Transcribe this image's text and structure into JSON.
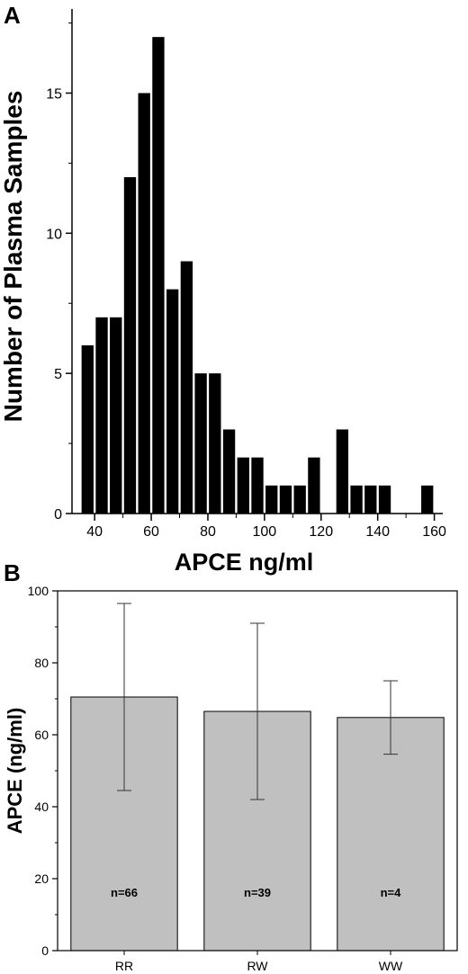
{
  "chart_data": [
    {
      "panel": "A",
      "type": "bar",
      "xlabel": "APCE ng/ml",
      "ylabel": "Number of Plasma Samples",
      "xlim": [
        32,
        163
      ],
      "ylim": [
        0,
        18
      ],
      "xticks": [
        40,
        60,
        80,
        100,
        120,
        140,
        160
      ],
      "yticks": [
        0,
        5,
        10,
        15
      ],
      "bar_color": "#000000",
      "x": [
        37.5,
        42.5,
        47.5,
        52.5,
        57.5,
        62.5,
        67.5,
        72.5,
        77.5,
        82.5,
        87.5,
        92.5,
        97.5,
        102.5,
        107.5,
        112.5,
        117.5,
        127.5,
        132.5,
        137.5,
        142.5,
        157.5
      ],
      "values": [
        6,
        7,
        7,
        12,
        15,
        17,
        8,
        9,
        5,
        5,
        3,
        2,
        2,
        1,
        1,
        1,
        2,
        3,
        1,
        1,
        1,
        1
      ]
    },
    {
      "panel": "B",
      "type": "bar",
      "xlabel": "",
      "ylabel": "APCE (ng/ml)",
      "ylim": [
        0,
        100
      ],
      "yticks": [
        0,
        20,
        40,
        60,
        80,
        100
      ],
      "bar_color": "#c0c0c0",
      "categories": [
        "RR",
        "RW",
        "WW"
      ],
      "values": [
        70.5,
        66.5,
        64.8
      ],
      "error": [
        26,
        24.5,
        10.2
      ],
      "annotations": [
        "n=66",
        "n=39",
        "n=4"
      ]
    }
  ]
}
